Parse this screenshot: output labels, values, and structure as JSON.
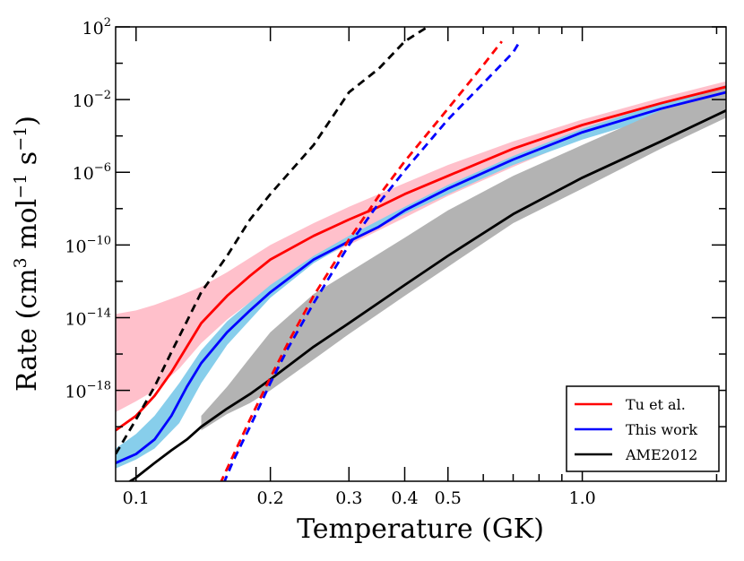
{
  "chart_data": {
    "type": "line",
    "xlabel": "Temperature (GK)",
    "ylabel": {
      "prefix": "Rate (cm",
      "sup1": "3",
      "mid1": " mol",
      "sup2": "−1",
      "mid2": " s",
      "sup3": "−1",
      "suffix": ")"
    },
    "x_scale": "log",
    "y_scale": "log",
    "xlim": [
      0.09,
      2.1
    ],
    "ylim": [
      1e-23,
      100
    ],
    "x_ticks": [
      {
        "value": 0.1,
        "label": "0.1"
      },
      {
        "value": 0.2,
        "label": "0.2"
      },
      {
        "value": 0.3,
        "label": "0.3"
      },
      {
        "value": 0.4,
        "label": "0.4"
      },
      {
        "value": 0.5,
        "label": "0.5"
      },
      {
        "value": 1.0,
        "label": "1.0"
      }
    ],
    "x_minor_ticks": [
      0.6,
      0.7,
      0.8,
      0.9,
      2.0
    ],
    "y_ticks": [
      {
        "exp": -18,
        "base": "10",
        "sup": "−18"
      },
      {
        "exp": -14,
        "base": "10",
        "sup": "−14"
      },
      {
        "exp": -10,
        "base": "10",
        "sup": "−10"
      },
      {
        "exp": -6,
        "base": "10",
        "sup": "−6"
      },
      {
        "exp": -2,
        "base": "10",
        "sup": "−2"
      },
      {
        "exp": 2,
        "base": "10",
        "sup": "2"
      }
    ],
    "y_minor_ticks": [
      -20,
      -16,
      -12,
      -8,
      -4,
      0
    ],
    "grid": false,
    "legend_position": "bottom-right",
    "bands": [
      {
        "color": "#ffc0cb",
        "x": [
          0.09,
          0.1,
          0.11,
          0.125,
          0.14,
          0.16,
          0.2,
          0.25,
          0.3,
          0.4,
          0.5,
          0.7,
          1.0,
          1.5,
          2.1
        ],
        "upper_log10": [
          -13.8,
          -13.6,
          -13.3,
          -12.8,
          -12.3,
          -11.5,
          -10.0,
          -8.8,
          -7.9,
          -6.6,
          -5.6,
          -4.3,
          -3.1,
          -1.9,
          -1.0
        ],
        "lower_log10": [
          -19.2,
          -18.6,
          -18.0,
          -16.8,
          -15.4,
          -14.1,
          -12.3,
          -10.9,
          -10.0,
          -8.5,
          -7.3,
          -5.7,
          -4.1,
          -2.6,
          -1.7
        ]
      },
      {
        "color": "#87ceeb",
        "x": [
          0.09,
          0.1,
          0.11,
          0.125,
          0.14,
          0.16,
          0.2,
          0.25,
          0.3,
          0.4,
          0.5,
          0.7,
          1.0,
          1.5,
          2.1
        ],
        "upper_log10": [
          -21.2,
          -20.4,
          -19.4,
          -17.6,
          -15.8,
          -14.2,
          -12.2,
          -10.6,
          -9.5,
          -7.9,
          -6.7,
          -5.1,
          -3.6,
          -2.2,
          -1.2
        ],
        "lower_log10": [
          -22.3,
          -21.8,
          -21.2,
          -19.8,
          -17.6,
          -15.5,
          -12.9,
          -11.0,
          -9.9,
          -8.3,
          -7.2,
          -5.6,
          -4.2,
          -2.9,
          -2.0
        ]
      },
      {
        "color": "#b3b3b3",
        "x": [
          0.14,
          0.16,
          0.18,
          0.2,
          0.25,
          0.3,
          0.4,
          0.5,
          0.7,
          1.0,
          1.5,
          2.1
        ],
        "upper_log10": [
          -19.4,
          -17.8,
          -16.2,
          -14.8,
          -12.7,
          -11.5,
          -9.6,
          -8.1,
          -6.2,
          -4.5,
          -2.6,
          -1.2
        ],
        "lower_log10": [
          -20.2,
          -19.3,
          -18.7,
          -18.0,
          -16.3,
          -14.9,
          -12.8,
          -11.2,
          -8.8,
          -6.9,
          -4.7,
          -3.0
        ]
      }
    ],
    "series": [
      {
        "name": "Tu et al.",
        "color": "#ff0000",
        "style": "solid",
        "x": [
          0.09,
          0.1,
          0.11,
          0.12,
          0.13,
          0.14,
          0.16,
          0.18,
          0.2,
          0.25,
          0.3,
          0.35,
          0.4,
          0.5,
          0.7,
          1.0,
          1.5,
          2.1
        ],
        "log10y": [
          -20.2,
          -19.4,
          -18.3,
          -17.0,
          -15.6,
          -14.3,
          -12.8,
          -11.7,
          -10.8,
          -9.5,
          -8.6,
          -7.9,
          -7.2,
          -6.2,
          -4.7,
          -3.4,
          -2.2,
          -1.3
        ]
      },
      {
        "name": "This work",
        "color": "#0000ff",
        "style": "solid",
        "x": [
          0.09,
          0.1,
          0.11,
          0.12,
          0.13,
          0.14,
          0.16,
          0.18,
          0.2,
          0.25,
          0.3,
          0.35,
          0.4,
          0.5,
          0.7,
          1.0,
          1.5,
          2.1
        ],
        "log10y": [
          -22.0,
          -21.5,
          -20.7,
          -19.4,
          -17.8,
          -16.5,
          -14.8,
          -13.6,
          -12.6,
          -10.8,
          -9.8,
          -9.0,
          -8.1,
          -6.9,
          -5.3,
          -3.8,
          -2.5,
          -1.6
        ]
      },
      {
        "name": "AME2012",
        "color": "#000000",
        "style": "solid",
        "x": [
          0.09,
          0.1,
          0.11,
          0.12,
          0.13,
          0.14,
          0.16,
          0.18,
          0.2,
          0.25,
          0.3,
          0.4,
          0.5,
          0.7,
          1.0,
          1.5,
          2.1
        ],
        "log10y": [
          -23.5,
          -22.8,
          -22.0,
          -21.3,
          -20.7,
          -20.0,
          -19.0,
          -18.2,
          -17.4,
          -15.6,
          -14.3,
          -12.2,
          -10.6,
          -8.3,
          -6.3,
          -4.3,
          -2.6
        ]
      },
      {
        "name": "",
        "color": "#000000",
        "style": "dashed",
        "x": [
          0.09,
          0.1,
          0.11,
          0.12,
          0.13,
          0.14,
          0.16,
          0.18,
          0.2,
          0.25,
          0.3,
          0.35,
          0.4,
          0.45
        ],
        "log10y": [
          -21.5,
          -19.6,
          -17.8,
          -15.9,
          -14.2,
          -12.6,
          -10.6,
          -8.6,
          -7.2,
          -4.5,
          -1.6,
          -0.3,
          1.2,
          2.0
        ]
      },
      {
        "name": "",
        "color": "#ff0000",
        "style": "dashed",
        "x": [
          0.15,
          0.16,
          0.18,
          0.2,
          0.22,
          0.25,
          0.3,
          0.35,
          0.4,
          0.5,
          0.6,
          0.66
        ],
        "log10y": [
          -23.8,
          -22.3,
          -19.6,
          -17.3,
          -15.3,
          -12.8,
          -9.7,
          -7.3,
          -5.4,
          -2.5,
          -0.1,
          1.2
        ]
      },
      {
        "name": "",
        "color": "#0000ff",
        "style": "dashed",
        "x": [
          0.153,
          0.165,
          0.18,
          0.2,
          0.22,
          0.25,
          0.3,
          0.35,
          0.4,
          0.5,
          0.6,
          0.7,
          0.72
        ],
        "log10y": [
          -23.8,
          -21.9,
          -20.0,
          -17.6,
          -15.6,
          -13.2,
          -10.0,
          -7.7,
          -5.9,
          -3.1,
          -1.1,
          0.6,
          1.1
        ]
      }
    ]
  }
}
